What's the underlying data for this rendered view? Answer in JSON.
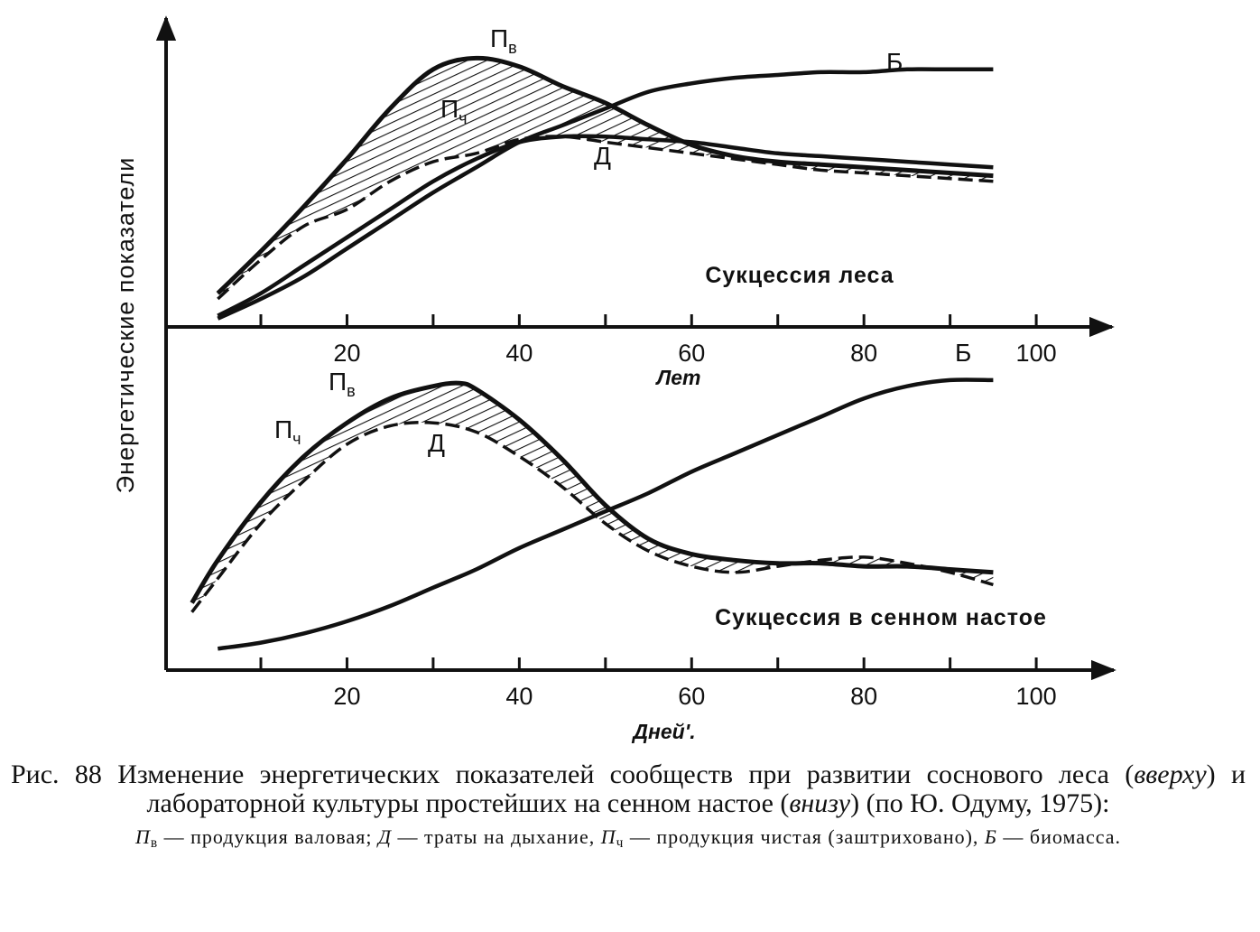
{
  "ylabel": "Энергетические показатели",
  "charts": {
    "forest": {
      "subtitle": "Сукцессия леса",
      "xlabel": "Лет",
      "label_gross": "П",
      "label_gross_sub": "в",
      "label_net": "П",
      "label_net_sub": "ч",
      "label_resp": "Д",
      "label_bio": "Б"
    },
    "hay": {
      "subtitle": "Сукцессия в сенном настое",
      "xlabel": "Дней'.",
      "label_gross": "П",
      "label_gross_sub": "в",
      "label_net": "П",
      "label_net_sub": "ч",
      "label_resp": "Д",
      "label_bio": "Б"
    }
  },
  "caption": {
    "fig_number": "Рис. 88",
    "text_1": "Изменение энергетических показателей сообществ при развитии соснового леса (",
    "em_1": "вверху",
    "text_2": ") и лабораторной культуры простейших на сенном настое (",
    "em_2": "внизу",
    "text_3": ") (по Ю. Одуму, 1975):",
    "legend_gross_sym": "П",
    "legend_gross_sub": "в",
    "legend_gross": " — продукция валовая;",
    "legend_resp_sym": "Д",
    "legend_resp": " — траты на дыхание,",
    "legend_net_sym": "П",
    "legend_net_sub": "ч",
    "legend_net": " — продукция чистая (заштриховано),",
    "legend_bio_sym": "Б",
    "legend_bio": " — биомасса."
  },
  "chart_data": [
    {
      "type": "line",
      "xlabel": "Лет",
      "ylabel": "Энергетические показатели",
      "x_ticks": [
        20,
        40,
        60,
        80,
        100
      ],
      "xlim": [
        -1,
        109
      ],
      "ylim": [
        0,
        100
      ],
      "net_production_hatched": true,
      "series": [
        {
          "name": "Пв",
          "style": "solid",
          "x": [
            5,
            10,
            15,
            20,
            25,
            30,
            35,
            40,
            45,
            50,
            55,
            60,
            65,
            70,
            75,
            80,
            85,
            90,
            95
          ],
          "y": [
            12,
            27,
            43,
            60,
            78,
            92,
            96,
            93,
            86,
            80,
            72,
            65,
            61,
            59,
            58,
            57,
            56,
            55,
            54
          ]
        },
        {
          "name": "Пч",
          "style": "dashed",
          "x": [
            5,
            10,
            15,
            20,
            25,
            30,
            35,
            40,
            45,
            50,
            55,
            60,
            65,
            70,
            75,
            80,
            85,
            90,
            95
          ],
          "y": [
            10,
            24,
            36,
            42,
            52,
            59,
            62,
            67,
            68,
            66,
            64,
            62,
            60,
            58,
            56,
            55,
            54,
            53,
            52
          ]
        },
        {
          "name": "Д",
          "style": "solid",
          "x": [
            5,
            10,
            15,
            20,
            25,
            30,
            35,
            40,
            45,
            50,
            55,
            60,
            65,
            70,
            75,
            80,
            85,
            90,
            95
          ],
          "y": [
            4,
            12,
            22,
            32,
            42,
            52,
            60,
            66,
            68,
            68,
            67,
            66,
            64,
            62,
            61,
            60,
            59,
            58,
            57
          ]
        },
        {
          "name": "Б",
          "style": "solid",
          "x": [
            5,
            10,
            15,
            20,
            25,
            30,
            35,
            40,
            45,
            50,
            55,
            60,
            65,
            70,
            75,
            80,
            85,
            90,
            95
          ],
          "y": [
            3,
            10,
            18,
            28,
            38,
            48,
            57,
            66,
            72,
            78,
            84,
            87,
            89,
            90,
            91,
            91,
            92,
            92,
            92
          ]
        }
      ]
    },
    {
      "type": "line",
      "xlabel": "Дней'.",
      "ylabel": "Энергетические показатели",
      "x_ticks": [
        20,
        40,
        60,
        80,
        100
      ],
      "xlim": [
        -1,
        109
      ],
      "ylim": [
        0,
        100
      ],
      "net_production_hatched": true,
      "series": [
        {
          "name": "Пв",
          "style": "solid",
          "x": [
            2,
            5,
            10,
            15,
            20,
            25,
            30,
            33,
            35,
            40,
            45,
            50,
            55,
            60,
            65,
            70,
            75,
            80,
            85,
            90,
            95
          ],
          "y": [
            22,
            36,
            55,
            70,
            81,
            89,
            93,
            94,
            92,
            82,
            69,
            54,
            43,
            38,
            36,
            35,
            35,
            34,
            34,
            33,
            32
          ]
        },
        {
          "name": "Пч",
          "style": "dashed",
          "x": [
            2,
            5,
            10,
            15,
            20,
            25,
            30,
            35,
            40,
            45,
            50,
            55,
            60,
            65,
            70,
            75,
            80,
            85,
            90,
            95
          ],
          "y": [
            19,
            30,
            48,
            62,
            74,
            80,
            81,
            78,
            70,
            60,
            48,
            39,
            34,
            32,
            34,
            36,
            37,
            35,
            32,
            28
          ]
        },
        {
          "name": "Д",
          "style": "solid",
          "x": [
            5,
            10,
            15,
            20,
            25,
            30,
            35,
            40,
            45,
            50,
            55,
            60,
            65,
            70,
            75,
            80,
            85,
            90,
            95
          ],
          "y": [
            7,
            9,
            12,
            16,
            21,
            27,
            33,
            40,
            46,
            52,
            58,
            65,
            71,
            77,
            83,
            89,
            93,
            95,
            95
          ]
        }
      ]
    }
  ]
}
